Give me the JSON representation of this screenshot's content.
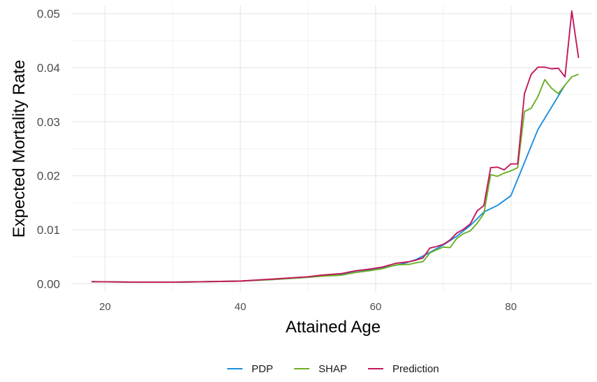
{
  "chart_data": {
    "type": "line",
    "title": "",
    "xlabel": "Attained Age",
    "ylabel": "Expected Mortality Rate",
    "xlim": [
      15,
      92
    ],
    "ylim": [
      -0.0015,
      0.0515
    ],
    "x_ticks": [
      20,
      40,
      60,
      80
    ],
    "x_tick_labels": [
      "20",
      "40",
      "60",
      "80"
    ],
    "y_ticks": [
      0,
      0.01,
      0.02,
      0.03,
      0.04,
      0.05
    ],
    "y_tick_labels": [
      "0.00",
      "0.01",
      "0.02",
      "0.03",
      "0.04",
      "0.05"
    ],
    "grid": true,
    "legend_position": "bottom",
    "series": [
      {
        "name": "PDP",
        "color": "#1c8ee0",
        "points": [
          [
            18,
            0.0004
          ],
          [
            25,
            0.0003
          ],
          [
            30,
            0.0003
          ],
          [
            35,
            0.0004
          ],
          [
            40,
            0.0005
          ],
          [
            45,
            0.0008
          ],
          [
            50,
            0.0012
          ],
          [
            55,
            0.0018
          ],
          [
            58,
            0.0023
          ],
          [
            60,
            0.0027
          ],
          [
            62,
            0.0032
          ],
          [
            64,
            0.0037
          ],
          [
            66,
            0.0045
          ],
          [
            68,
            0.0058
          ],
          [
            70,
            0.0072
          ],
          [
            72,
            0.0088
          ],
          [
            74,
            0.0108
          ],
          [
            76,
            0.0133
          ],
          [
            78,
            0.0145
          ],
          [
            80,
            0.0163
          ],
          [
            84,
            0.0286
          ],
          [
            88,
            0.0368
          ]
        ]
      },
      {
        "name": "SHAP",
        "color": "#6ab023",
        "points": [
          [
            18,
            0.0004
          ],
          [
            25,
            0.0003
          ],
          [
            30,
            0.0003
          ],
          [
            35,
            0.0004
          ],
          [
            40,
            0.0005
          ],
          [
            45,
            0.0008
          ],
          [
            50,
            0.0012
          ],
          [
            52,
            0.0014
          ],
          [
            55,
            0.0016
          ],
          [
            57,
            0.0021
          ],
          [
            59,
            0.0024
          ],
          [
            61,
            0.0028
          ],
          [
            63,
            0.0035
          ],
          [
            65,
            0.0036
          ],
          [
            66,
            0.0039
          ],
          [
            67,
            0.0041
          ],
          [
            68,
            0.0057
          ],
          [
            69,
            0.0063
          ],
          [
            70,
            0.0068
          ],
          [
            71,
            0.0067
          ],
          [
            72,
            0.0084
          ],
          [
            73,
            0.0093
          ],
          [
            74,
            0.0098
          ],
          [
            75,
            0.0112
          ],
          [
            76,
            0.013
          ],
          [
            77,
            0.0202
          ],
          [
            78,
            0.0199
          ],
          [
            79,
            0.0205
          ],
          [
            80,
            0.0209
          ],
          [
            81,
            0.0215
          ],
          [
            82,
            0.0319
          ],
          [
            83,
            0.0325
          ],
          [
            84,
            0.0347
          ],
          [
            85,
            0.0378
          ],
          [
            86,
            0.0362
          ],
          [
            87,
            0.0352
          ],
          [
            88,
            0.0368
          ],
          [
            89,
            0.0383
          ],
          [
            90,
            0.0388
          ]
        ]
      },
      {
        "name": "Prediction",
        "color": "#c2185b",
        "points": [
          [
            18,
            0.0004
          ],
          [
            25,
            0.0003
          ],
          [
            30,
            0.0003
          ],
          [
            35,
            0.0004
          ],
          [
            40,
            0.0005
          ],
          [
            45,
            0.0009
          ],
          [
            50,
            0.0013
          ],
          [
            52,
            0.0016
          ],
          [
            55,
            0.0019
          ],
          [
            57,
            0.0024
          ],
          [
            59,
            0.0027
          ],
          [
            61,
            0.0031
          ],
          [
            63,
            0.0038
          ],
          [
            65,
            0.0041
          ],
          [
            66,
            0.0044
          ],
          [
            67,
            0.0048
          ],
          [
            68,
            0.0066
          ],
          [
            69,
            0.0069
          ],
          [
            70,
            0.0073
          ],
          [
            71,
            0.0081
          ],
          [
            72,
            0.0094
          ],
          [
            73,
            0.0101
          ],
          [
            74,
            0.0111
          ],
          [
            75,
            0.0135
          ],
          [
            76,
            0.0145
          ],
          [
            77,
            0.0215
          ],
          [
            78,
            0.0216
          ],
          [
            79,
            0.0211
          ],
          [
            80,
            0.0222
          ],
          [
            81,
            0.0222
          ],
          [
            82,
            0.0352
          ],
          [
            83,
            0.0388
          ],
          [
            84,
            0.0401
          ],
          [
            85,
            0.0401
          ],
          [
            86,
            0.0398
          ],
          [
            87,
            0.0399
          ],
          [
            88,
            0.0383
          ],
          [
            89,
            0.0505
          ],
          [
            90,
            0.0418
          ]
        ]
      }
    ]
  }
}
